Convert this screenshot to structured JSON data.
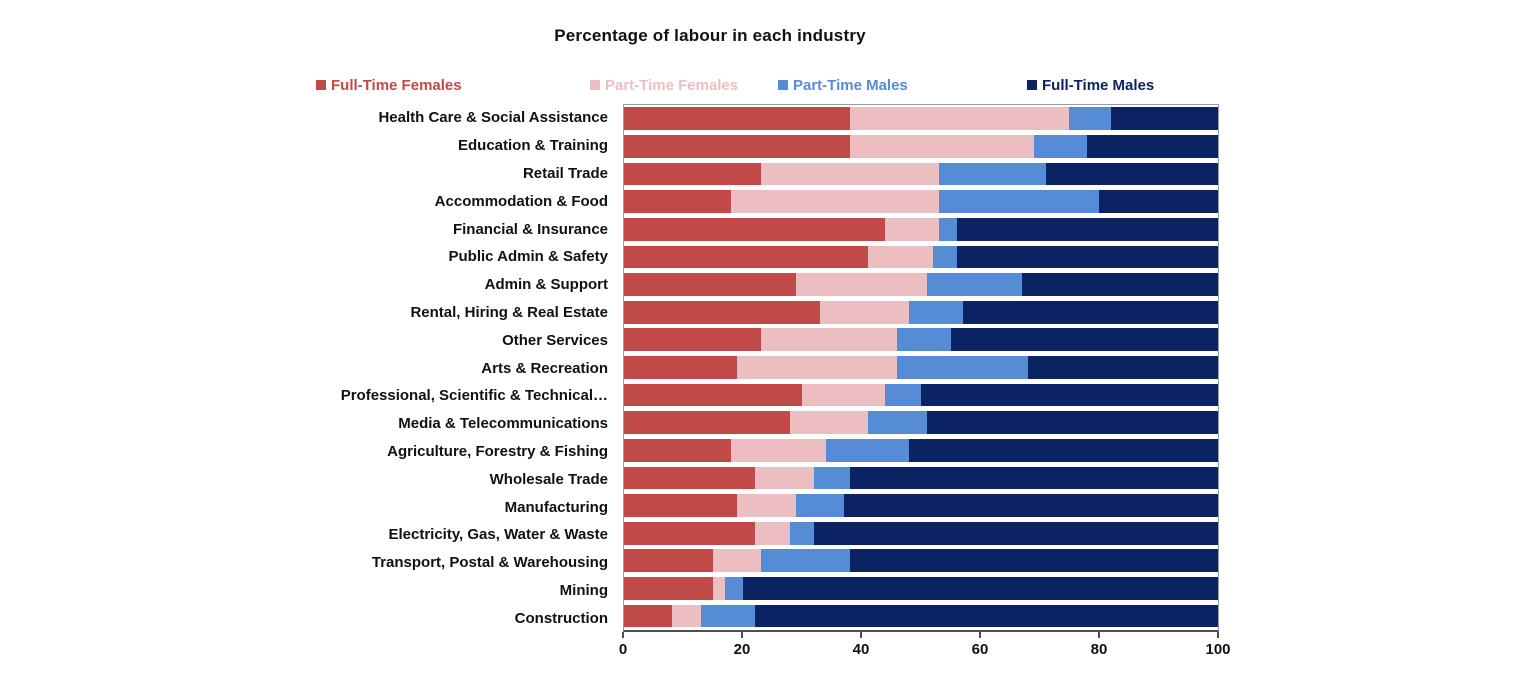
{
  "chart_data": {
    "type": "bar",
    "orientation": "horizontal",
    "stacked": true,
    "title": "Percentage of labour in each industry",
    "xlabel": "",
    "ylabel": "",
    "x_axis": {
      "min": 0,
      "max": 100,
      "ticks": [
        0,
        20,
        40,
        60,
        80,
        100
      ]
    },
    "grid": false,
    "legend_position": "top",
    "categories": [
      "Health Care & Social Assistance",
      "Education & Training",
      "Retail Trade",
      "Accommodation & Food",
      "Financial & Insurance",
      "Public Admin & Safety",
      "Admin & Support",
      "Rental, Hiring & Real Estate",
      "Other Services",
      "Arts & Recreation",
      "Professional, Scientific & Technical…",
      "Media & Telecommunications",
      "Agriculture, Forestry & Fishing",
      "Wholesale Trade",
      "Manufacturing",
      "Electricity, Gas, Water & Waste",
      "Transport, Postal & Warehousing",
      "Mining",
      "Construction"
    ],
    "series": [
      {
        "name": "Full-Time Females",
        "color": "#C14A48",
        "values": [
          38,
          38,
          23,
          18,
          44,
          41,
          29,
          33,
          23,
          19,
          30,
          28,
          18,
          22,
          19,
          22,
          15,
          15,
          8
        ]
      },
      {
        "name": "Part-Time Females",
        "color": "#EBBFC2",
        "values": [
          37,
          31,
          30,
          35,
          9,
          11,
          22,
          15,
          23,
          27,
          14,
          13,
          16,
          10,
          10,
          6,
          8,
          2,
          5
        ]
      },
      {
        "name": "Part-Time Males",
        "color": "#568BD6",
        "values": [
          7,
          9,
          18,
          27,
          3,
          4,
          16,
          9,
          9,
          22,
          6,
          10,
          14,
          6,
          8,
          4,
          15,
          3,
          9
        ]
      },
      {
        "name": "Full-Time Males",
        "color": "#0B2363",
        "values": [
          18,
          22,
          29,
          20,
          44,
          44,
          33,
          43,
          45,
          32,
          50,
          49,
          52,
          62,
          63,
          68,
          62,
          80,
          78
        ]
      }
    ]
  }
}
